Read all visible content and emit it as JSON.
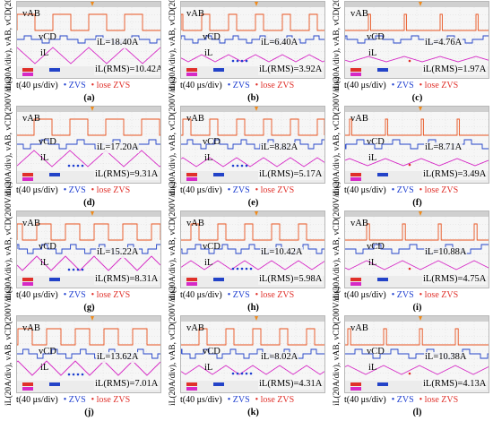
{
  "labels": {
    "y_axis": "iL(20A/div), vAB, vCD(200V/div)",
    "t_axis": "t(40 μs/div)",
    "zvs_legend": "• ZVS",
    "lose_zvs_legend": "• lose ZVS",
    "v_ab": "vAB",
    "v_cd": "vCD",
    "i_l": "iL"
  },
  "colors": {
    "v_ab": "#e8531f",
    "v_cd": "#2343c8",
    "i_l": "#d629c6",
    "zvs": "#1f3fd0",
    "lose_zvs": "#e0302a",
    "scope_bg": "#f6f6f6",
    "scope_bar": "#d0d0d0"
  },
  "chart_data": [
    {
      "type": "line",
      "panel": "(a)",
      "il_peak": "iL=18.40A",
      "il_rms": "iL(RMS)=10.42A",
      "x_unit": "40 μs/div",
      "y_unit_current": "20A/div",
      "y_unit_voltage": "200V/div",
      "series": [
        {
          "name": "vAB"
        },
        {
          "name": "vCD"
        },
        {
          "name": "iL"
        }
      ]
    },
    {
      "type": "line",
      "panel": "(b)",
      "il_peak": "iL=6.40A",
      "il_rms": "iL(RMS)=3.92A",
      "x_unit": "40 μs/div",
      "y_unit_current": "20A/div",
      "y_unit_voltage": "200V/div",
      "series": [
        {
          "name": "vAB"
        },
        {
          "name": "vCD"
        },
        {
          "name": "iL"
        }
      ]
    },
    {
      "type": "line",
      "panel": "(c)",
      "il_peak": "iL=4.76A",
      "il_rms": "iL(RMS)=1.97A",
      "x_unit": "40 μs/div",
      "y_unit_current": "20A/div",
      "y_unit_voltage": "200V/div",
      "series": [
        {
          "name": "vAB"
        },
        {
          "name": "vCD"
        },
        {
          "name": "iL"
        }
      ]
    },
    {
      "type": "line",
      "panel": "(d)",
      "il_peak": "iL=17.20A",
      "il_rms": "iL(RMS)=9.31A",
      "x_unit": "40 μs/div",
      "y_unit_current": "20A/div",
      "y_unit_voltage": "200V/div",
      "series": [
        {
          "name": "vAB"
        },
        {
          "name": "vCD"
        },
        {
          "name": "iL"
        }
      ]
    },
    {
      "type": "line",
      "panel": "(e)",
      "il_peak": "iL=8.82A",
      "il_rms": "iL(RMS)=5.17A",
      "x_unit": "40 μs/div",
      "y_unit_current": "20A/div",
      "y_unit_voltage": "200V/div",
      "series": [
        {
          "name": "vAB"
        },
        {
          "name": "vCD"
        },
        {
          "name": "iL"
        }
      ]
    },
    {
      "type": "line",
      "panel": "(f)",
      "il_peak": "iL=8.71A",
      "il_rms": "iL(RMS)=3.49A",
      "x_unit": "40 μs/div",
      "y_unit_current": "20A/div",
      "y_unit_voltage": "200V/div",
      "series": [
        {
          "name": "vAB"
        },
        {
          "name": "vCD"
        },
        {
          "name": "iL"
        }
      ]
    },
    {
      "type": "line",
      "panel": "(g)",
      "il_peak": "iL=15.22A",
      "il_rms": "iL(RMS)=8.31A",
      "x_unit": "40 μs/div",
      "y_unit_current": "20A/div",
      "y_unit_voltage": "200V/div",
      "series": [
        {
          "name": "vAB"
        },
        {
          "name": "vCD"
        },
        {
          "name": "iL"
        }
      ]
    },
    {
      "type": "line",
      "panel": "(h)",
      "il_peak": "iL=10.42A",
      "il_rms": "iL(RMS)=5.98A",
      "x_unit": "40 μs/div",
      "y_unit_current": "20A/div",
      "y_unit_voltage": "200V/div",
      "series": [
        {
          "name": "vAB"
        },
        {
          "name": "vCD"
        },
        {
          "name": "iL"
        }
      ]
    },
    {
      "type": "line",
      "panel": "(i)",
      "il_peak": "iL=10.88A",
      "il_rms": "iL(RMS)=4.75A",
      "x_unit": "40 μs/div",
      "y_unit_current": "20A/div",
      "y_unit_voltage": "200V/div",
      "series": [
        {
          "name": "vAB"
        },
        {
          "name": "vCD"
        },
        {
          "name": "iL"
        }
      ]
    },
    {
      "type": "line",
      "panel": "(j)",
      "il_peak": "iL=13.62A",
      "il_rms": "iL(RMS)=7.01A",
      "x_unit": "40 μs/div",
      "y_unit_current": "20A/div",
      "y_unit_voltage": "200V/div",
      "series": [
        {
          "name": "vAB"
        },
        {
          "name": "vCD"
        },
        {
          "name": "iL"
        }
      ]
    },
    {
      "type": "line",
      "panel": "(k)",
      "il_peak": "iL=8.02A",
      "il_rms": "iL(RMS)=4.31A",
      "x_unit": "40 μs/div",
      "y_unit_current": "20A/div",
      "y_unit_voltage": "200V/div",
      "series": [
        {
          "name": "vAB"
        },
        {
          "name": "vCD"
        },
        {
          "name": "iL"
        }
      ]
    },
    {
      "type": "line",
      "panel": "(l)",
      "il_peak": "iL=10.38A",
      "il_rms": "iL(RMS)=4.13A",
      "x_unit": "40 μs/div",
      "y_unit_current": "20A/div",
      "y_unit_voltage": "200V/div",
      "series": [
        {
          "name": "vAB"
        },
        {
          "name": "vCD"
        },
        {
          "name": "iL"
        }
      ]
    }
  ]
}
